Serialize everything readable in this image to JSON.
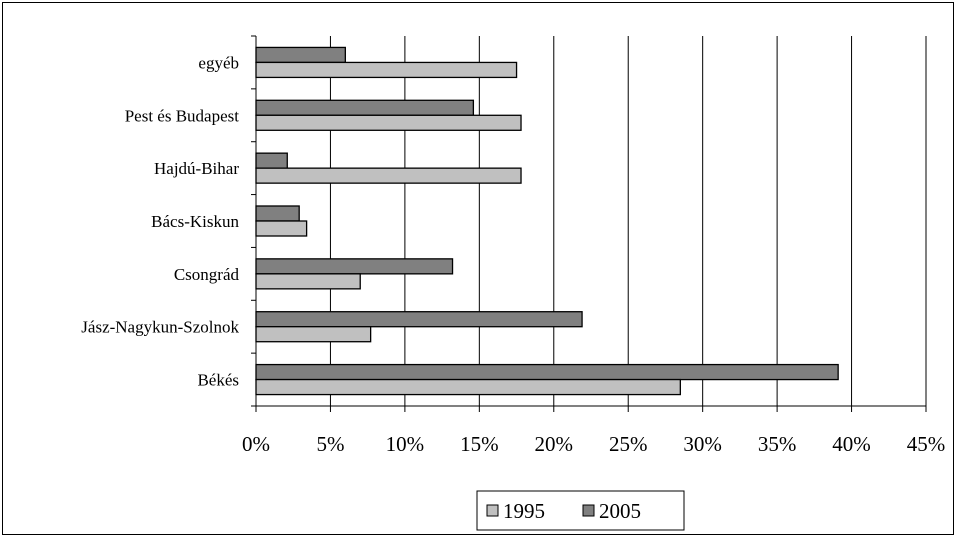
{
  "chart_data": {
    "type": "bar",
    "orientation": "horizontal",
    "categories": [
      "egyéb",
      "Pest és Budapest",
      "Hajdú-Bihar",
      "Bács-Kiskun",
      "Csongrád",
      "Jász-Nagykun-Szolnok",
      "Békés"
    ],
    "series": [
      {
        "name": "2005",
        "color": "#808080",
        "values": [
          6.0,
          14.6,
          2.1,
          2.9,
          13.2,
          21.9,
          39.1
        ]
      },
      {
        "name": "1995",
        "color": "#c0c0c0",
        "values": [
          17.5,
          17.8,
          17.8,
          3.4,
          7.0,
          7.7,
          28.5
        ]
      }
    ],
    "x_ticks": [
      "0%",
      "5%",
      "10%",
      "15%",
      "20%",
      "25%",
      "30%",
      "35%",
      "40%",
      "45%"
    ],
    "xlim": [
      0,
      45
    ],
    "grid": "vertical",
    "legend": {
      "position": "bottom",
      "entries": [
        {
          "label": "1995",
          "color": "#c0c0c0"
        },
        {
          "label": "2005",
          "color": "#808080"
        }
      ]
    }
  }
}
